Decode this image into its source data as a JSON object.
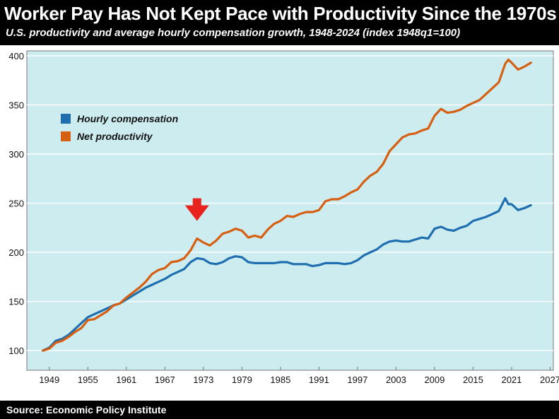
{
  "header": {
    "title": "Worker Pay Has Not Kept Pace with Productivity Since the 1970s",
    "subtitle": "U.S. productivity and average hourly compensation growth, 1948-2024 (index 1948q1=100)"
  },
  "footer": {
    "source": "Source: Economic Policy Institute"
  },
  "colors": {
    "plot_background": "#cdecf0",
    "compensation": "#1f6fb0",
    "productivity": "#d65f12",
    "arrow": "#e8231d",
    "axis": "#777777"
  },
  "chart_data": {
    "type": "line",
    "title": "Worker Pay Has Not Kept Pace with Productivity Since the 1970s",
    "subtitle": "U.S. productivity and average hourly compensation growth, 1948-2024 (index 1948q1=100)",
    "xlabel": "",
    "ylabel": "",
    "xlim": [
      1945.5,
      2027.5
    ],
    "ylim": [
      80,
      405
    ],
    "x_ticks": [
      1949,
      1955,
      1961,
      1967,
      1973,
      1979,
      1985,
      1991,
      1997,
      2003,
      2009,
      2015,
      2021,
      2027
    ],
    "y_ticks": [
      100,
      150,
      200,
      250,
      300,
      350,
      400
    ],
    "grid": true,
    "legend_position": "top-left",
    "annotation": {
      "type": "arrow",
      "x": 1972,
      "y_from": 255,
      "y_to": 232,
      "description": "divergence begins"
    },
    "series": [
      {
        "name": "Hourly compensation",
        "color_key": "compensation",
        "points": [
          [
            1948,
            100
          ],
          [
            1949,
            103
          ],
          [
            1950,
            110
          ],
          [
            1951,
            112
          ],
          [
            1952,
            116
          ],
          [
            1953,
            122
          ],
          [
            1954,
            128
          ],
          [
            1955,
            134
          ],
          [
            1956,
            137
          ],
          [
            1957,
            140
          ],
          [
            1958,
            143
          ],
          [
            1959,
            146
          ],
          [
            1960,
            148
          ],
          [
            1961,
            152
          ],
          [
            1962,
            156
          ],
          [
            1963,
            160
          ],
          [
            1964,
            164
          ],
          [
            1965,
            167
          ],
          [
            1966,
            170
          ],
          [
            1967,
            173
          ],
          [
            1968,
            177
          ],
          [
            1969,
            180
          ],
          [
            1970,
            183
          ],
          [
            1971,
            190
          ],
          [
            1972,
            194
          ],
          [
            1973,
            193
          ],
          [
            1974,
            189
          ],
          [
            1975,
            188
          ],
          [
            1976,
            190
          ],
          [
            1977,
            194
          ],
          [
            1978,
            196
          ],
          [
            1979,
            195
          ],
          [
            1980,
            190
          ],
          [
            1981,
            189
          ],
          [
            1982,
            189
          ],
          [
            1983,
            189
          ],
          [
            1984,
            189
          ],
          [
            1985,
            190
          ],
          [
            1986,
            190
          ],
          [
            1987,
            188
          ],
          [
            1988,
            188
          ],
          [
            1989,
            188
          ],
          [
            1990,
            186
          ],
          [
            1991,
            187
          ],
          [
            1992,
            189
          ],
          [
            1993,
            189
          ],
          [
            1994,
            189
          ],
          [
            1995,
            188
          ],
          [
            1996,
            189
          ],
          [
            1997,
            192
          ],
          [
            1998,
            197
          ],
          [
            1999,
            200
          ],
          [
            2000,
            203
          ],
          [
            2001,
            208
          ],
          [
            2002,
            211
          ],
          [
            2003,
            212
          ],
          [
            2004,
            211
          ],
          [
            2005,
            211
          ],
          [
            2006,
            213
          ],
          [
            2007,
            215
          ],
          [
            2008,
            214
          ],
          [
            2009,
            224
          ],
          [
            2010,
            226
          ],
          [
            2011,
            223
          ],
          [
            2012,
            222
          ],
          [
            2013,
            225
          ],
          [
            2014,
            227
          ],
          [
            2015,
            232
          ],
          [
            2016,
            234
          ],
          [
            2017,
            236
          ],
          [
            2018,
            239
          ],
          [
            2019,
            242
          ],
          [
            2020,
            255
          ],
          [
            2020.5,
            249
          ],
          [
            2021,
            249
          ],
          [
            2022,
            243
          ],
          [
            2023,
            245
          ],
          [
            2024,
            248
          ]
        ]
      },
      {
        "name": "Net productivity",
        "color_key": "productivity",
        "points": [
          [
            1948,
            100
          ],
          [
            1949,
            102
          ],
          [
            1950,
            108
          ],
          [
            1951,
            110
          ],
          [
            1952,
            114
          ],
          [
            1953,
            119
          ],
          [
            1954,
            123
          ],
          [
            1955,
            131
          ],
          [
            1956,
            132
          ],
          [
            1957,
            136
          ],
          [
            1958,
            140
          ],
          [
            1959,
            146
          ],
          [
            1960,
            148
          ],
          [
            1961,
            154
          ],
          [
            1962,
            159
          ],
          [
            1963,
            164
          ],
          [
            1964,
            170
          ],
          [
            1965,
            178
          ],
          [
            1966,
            182
          ],
          [
            1967,
            184
          ],
          [
            1968,
            190
          ],
          [
            1969,
            191
          ],
          [
            1970,
            194
          ],
          [
            1971,
            202
          ],
          [
            1972,
            214
          ],
          [
            1973,
            210
          ],
          [
            1974,
            207
          ],
          [
            1975,
            212
          ],
          [
            1976,
            219
          ],
          [
            1977,
            221
          ],
          [
            1978,
            224
          ],
          [
            1979,
            222
          ],
          [
            1980,
            215
          ],
          [
            1981,
            217
          ],
          [
            1982,
            215
          ],
          [
            1983,
            223
          ],
          [
            1984,
            229
          ],
          [
            1985,
            232
          ],
          [
            1986,
            237
          ],
          [
            1987,
            236
          ],
          [
            1988,
            239
          ],
          [
            1989,
            241
          ],
          [
            1990,
            241
          ],
          [
            1991,
            243
          ],
          [
            1992,
            252
          ],
          [
            1993,
            254
          ],
          [
            1994,
            254
          ],
          [
            1995,
            257
          ],
          [
            1996,
            261
          ],
          [
            1997,
            264
          ],
          [
            1998,
            272
          ],
          [
            1999,
            278
          ],
          [
            2000,
            282
          ],
          [
            2001,
            290
          ],
          [
            2002,
            303
          ],
          [
            2003,
            310
          ],
          [
            2004,
            317
          ],
          [
            2005,
            320
          ],
          [
            2006,
            321
          ],
          [
            2007,
            324
          ],
          [
            2008,
            326
          ],
          [
            2009,
            339
          ],
          [
            2010,
            346
          ],
          [
            2011,
            342
          ],
          [
            2012,
            343
          ],
          [
            2013,
            345
          ],
          [
            2014,
            349
          ],
          [
            2015,
            352
          ],
          [
            2016,
            355
          ],
          [
            2017,
            361
          ],
          [
            2018,
            367
          ],
          [
            2019,
            373
          ],
          [
            2020,
            392
          ],
          [
            2020.5,
            396
          ],
          [
            2021,
            393
          ],
          [
            2022,
            386
          ],
          [
            2023,
            389
          ],
          [
            2024,
            393
          ]
        ]
      }
    ]
  }
}
